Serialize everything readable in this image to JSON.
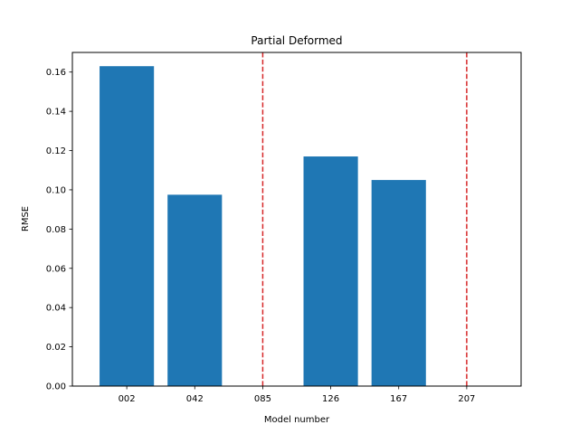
{
  "chart_data": {
    "type": "bar",
    "title": "Partial Deformed",
    "xlabel": "Model number",
    "ylabel": "RMSE",
    "categories": [
      "002",
      "042",
      "085",
      "126",
      "167",
      "207"
    ],
    "values": [
      0.163,
      0.0975,
      null,
      0.117,
      0.105,
      null
    ],
    "ylim": [
      0,
      0.17
    ],
    "yticks": [
      "0.00",
      "0.02",
      "0.04",
      "0.06",
      "0.08",
      "0.10",
      "0.12",
      "0.14",
      "0.16"
    ],
    "bar_color": "#1f77b4",
    "reference_lines": [
      {
        "category": "085",
        "color": "#d62728",
        "style": "dashed"
      },
      {
        "category": "207",
        "color": "#d62728",
        "style": "dashed"
      }
    ],
    "grid": false,
    "legend": "none"
  }
}
